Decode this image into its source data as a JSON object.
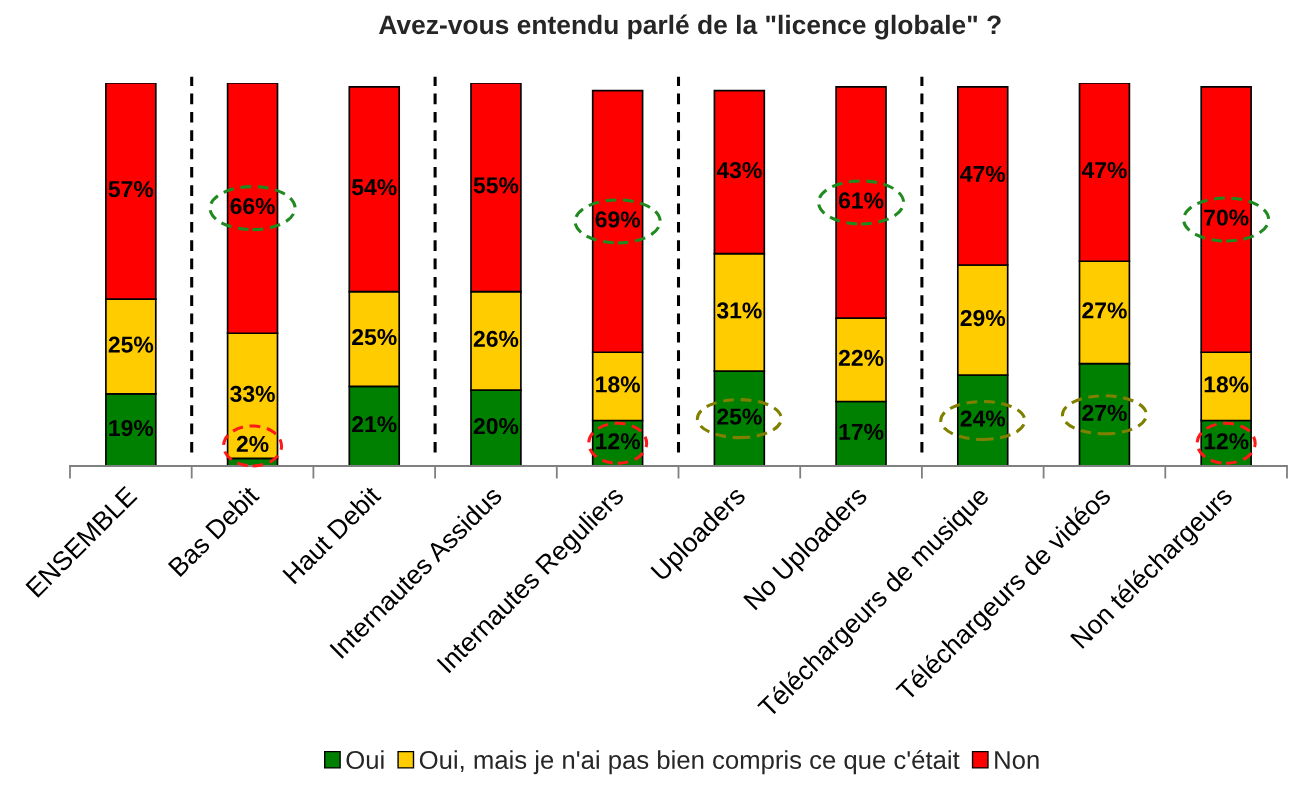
{
  "chart_data": {
    "type": "bar",
    "title": "Avez-vous entendu parlé de la \"licence globale\" ?",
    "categories": [
      "ENSEMBLE",
      "Bas Debit",
      "Haut Debit",
      "Internautes Assidus",
      "Internautes Reguliers",
      "Uploaders",
      "No Uploaders",
      "Téléchargeurs de musique",
      "Téléchargeurs de vidéos",
      "Non téléchargeurs"
    ],
    "stacked": true,
    "series": [
      {
        "name": "Oui",
        "color": "#008000",
        "values": [
          19,
          2,
          21,
          20,
          12,
          25,
          17,
          24,
          27,
          12
        ],
        "value_labels": [
          "19%",
          "2%",
          "21%",
          "20%",
          "12%",
          "25%",
          "17%",
          "24%",
          "27%",
          "12%"
        ]
      },
      {
        "name": "Oui, mais je n'ai pas bien compris ce que c'était",
        "color": "#ffcc00",
        "values": [
          25,
          33,
          25,
          26,
          18,
          31,
          22,
          29,
          27,
          18
        ],
        "value_labels": [
          "25%",
          "33%",
          "25%",
          "26%",
          "18%",
          "31%",
          "22%",
          "29%",
          "27%",
          "18%"
        ]
      },
      {
        "name": "Non",
        "color": "#ff0000",
        "values": [
          57,
          66,
          54,
          55,
          69,
          43,
          61,
          47,
          47,
          70
        ],
        "value_labels": [
          "57%",
          "66%",
          "54%",
          "55%",
          "69%",
          "43%",
          "61%",
          "47%",
          "47%",
          "70%"
        ]
      }
    ],
    "legend": "bottom"
  }
}
